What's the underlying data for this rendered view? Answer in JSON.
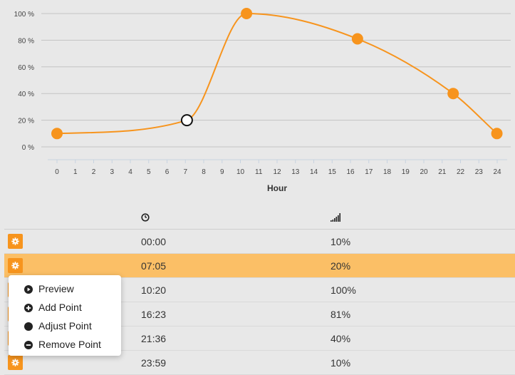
{
  "chart_data": {
    "type": "line",
    "xlabel": "Hour",
    "x_ticks": [
      "0",
      "1",
      "2",
      "3",
      "4",
      "5",
      "6",
      "7",
      "8",
      "9",
      "10",
      "11",
      "12",
      "13",
      "14",
      "15",
      "16",
      "17",
      "18",
      "19",
      "20",
      "21",
      "22",
      "23",
      "24"
    ],
    "y_ticks": [
      "100 %",
      "80 %",
      "60 %",
      "40 %",
      "20 %",
      "0 %"
    ],
    "ylim": [
      0,
      100
    ],
    "xlim": [
      0,
      24
    ],
    "grid": true,
    "line_color": "#f7941d",
    "series": [
      {
        "points": [
          {
            "x": 0.0,
            "y": 10
          },
          {
            "x": 7.083,
            "y": 20
          },
          {
            "x": 10.333,
            "y": 100
          },
          {
            "x": 16.383,
            "y": 81
          },
          {
            "x": 21.6,
            "y": 40
          },
          {
            "x": 23.983,
            "y": 10
          }
        ],
        "selected_index": 1
      }
    ]
  },
  "table": {
    "time_header_icon": "clock-icon",
    "level_header_icon": "signal-icon",
    "rows": [
      {
        "time": "00:00",
        "level": "10%"
      },
      {
        "time": "07:05",
        "level": "20%"
      },
      {
        "time": "10:20",
        "level": "100%"
      },
      {
        "time": "16:23",
        "level": "81%"
      },
      {
        "time": "21:36",
        "level": "40%"
      },
      {
        "time": "23:59",
        "level": "10%"
      }
    ],
    "selected_row": 1
  },
  "context_menu": {
    "items": [
      {
        "label": "Preview",
        "icon": "play-circle-icon"
      },
      {
        "label": "Add Point",
        "icon": "plus-circle-icon"
      },
      {
        "label": "Adjust Point",
        "icon": "circle-icon"
      },
      {
        "label": "Remove Point",
        "icon": "minus-circle-icon"
      }
    ]
  },
  "colors": {
    "accent": "#f7941d",
    "selected_row": "#fbbf66",
    "background": "#e8e8e8"
  }
}
